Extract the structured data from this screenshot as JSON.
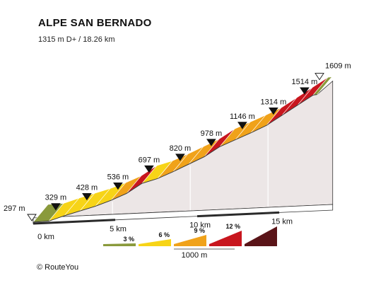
{
  "title": "ALPE SAN BERNADO",
  "subtitle": "1315 m D+ / 18.26 km",
  "credit": "©  RouteYou",
  "chart_data": {
    "type": "area",
    "title": "ALPE SAN BERNADO",
    "subtitle": "1315 m D+ / 18.26 km",
    "x_unit": "km",
    "y_unit": "m",
    "distance_km": 18.26,
    "elevation_gain_m": 1315,
    "start_elevation_m": 297,
    "summit_elevation_m": 1609,
    "x_ticks": [
      {
        "km": 0,
        "label": "0 km"
      },
      {
        "km": 5,
        "label": "5 km"
      },
      {
        "km": 10,
        "label": "10 km"
      },
      {
        "km": 15,
        "label": "15 km"
      }
    ],
    "start_label": "297 m",
    "summit_label": "1609 m",
    "segments": [
      {
        "from_km": 0,
        "to_km": 1,
        "grade": 1.0
      },
      {
        "from_km": 1,
        "to_km": 2,
        "grade": 5.0
      },
      {
        "from_km": 2,
        "to_km": 3,
        "grade": 4.5
      },
      {
        "from_km": 3,
        "to_km": 4,
        "grade": 4.5
      },
      {
        "from_km": 4,
        "to_km": 5,
        "grade": 5.5
      },
      {
        "from_km": 5,
        "to_km": 6,
        "grade": 6.5
      },
      {
        "from_km": 6,
        "to_km": 7,
        "grade": 9.5
      },
      {
        "from_km": 7,
        "to_km": 8,
        "grade": 4.5
      },
      {
        "from_km": 8,
        "to_km": 9,
        "grade": 6.5
      },
      {
        "from_km": 9,
        "to_km": 10,
        "grade": 7.0
      },
      {
        "from_km": 10,
        "to_km": 11,
        "grade": 7.0
      },
      {
        "from_km": 11,
        "to_km": 12,
        "grade": 9.5
      },
      {
        "from_km": 12,
        "to_km": 13,
        "grade": 6.5
      },
      {
        "from_km": 13,
        "to_km": 14,
        "grade": 6.5
      },
      {
        "from_km": 14,
        "to_km": 15,
        "grade": 7.0
      },
      {
        "from_km": 15,
        "to_km": 16,
        "grade": 9.5
      },
      {
        "from_km": 16,
        "to_km": 17,
        "grade": 9.5
      },
      {
        "from_km": 17,
        "to_km": 18,
        "grade": 9.5
      },
      {
        "from_km": 18,
        "to_km": 18.26,
        "grade": 2.0
      }
    ],
    "markers": [
      {
        "km": 1,
        "label": "329 m"
      },
      {
        "km": 3,
        "label": "428 m"
      },
      {
        "km": 5,
        "label": "536 m"
      },
      {
        "km": 7,
        "label": "697 m"
      },
      {
        "km": 9,
        "label": "820 m"
      },
      {
        "km": 11,
        "label": "978 m"
      },
      {
        "km": 13,
        "label": "1146 m"
      },
      {
        "km": 15,
        "label": "1314 m"
      },
      {
        "km": 17,
        "label": "1514 m"
      }
    ],
    "legend": [
      {
        "label": "3 %",
        "color": "#8a9a3c",
        "max_grade": 3
      },
      {
        "label": "6 %",
        "color": "#f7d417",
        "max_grade": 6
      },
      {
        "label": "9 %",
        "color": "#f0a21a",
        "max_grade": 9
      },
      {
        "label": "12 %",
        "color": "#c8161e",
        "max_grade": 12
      },
      {
        "label": "",
        "color": "#5a1418",
        "max_grade": 99
      }
    ],
    "scale_label": "1000 m",
    "colors": {
      "face": "#ece6e6",
      "base": "#2a2a2a",
      "outline": "#333333"
    }
  }
}
